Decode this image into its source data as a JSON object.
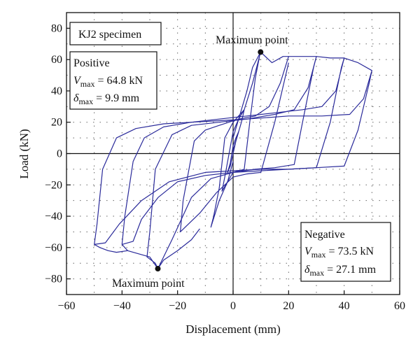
{
  "chart_data": {
    "type": "line",
    "xlabel": "Displacement (mm)",
    "ylabel": "Load (kN)",
    "xlim": [
      -60,
      60
    ],
    "ylim": [
      -90,
      90
    ],
    "x_ticks": [
      -60,
      -40,
      -20,
      0,
      20,
      40,
      60
    ],
    "y_ticks": [
      -80,
      -60,
      -40,
      -20,
      0,
      20,
      40,
      60,
      80
    ],
    "x_tick_labels": [
      "−60",
      "−40",
      "−20",
      "0",
      "20",
      "40",
      "60"
    ],
    "y_tick_labels": [
      "−80",
      "−60",
      "−40",
      "−20",
      "0",
      "20",
      "40",
      "60",
      "80"
    ],
    "grid": "dotted",
    "line_color": "#2a2a9a",
    "specimen_label": "KJ2 specimen",
    "positive_box": {
      "title": "Positive",
      "v_symbol": "V",
      "v_sub": "max",
      "v_value": " = 64.8 kN",
      "d_symbol": "δ",
      "d_sub": "max",
      "d_value": " = 9.9 mm"
    },
    "negative_box": {
      "title": "Negative",
      "v_symbol": "V",
      "v_sub": "max",
      "v_value": " = 73.5 kN",
      "d_symbol": "δ",
      "d_sub": "max",
      "d_value": " = 27.1 mm"
    },
    "annotations": [
      {
        "text": "Maximum point",
        "x": 9.9,
        "y": 64.8
      },
      {
        "text": "Maximum point",
        "x": -27.1,
        "y": -73.5
      }
    ],
    "peak_points": [
      {
        "x": 9.9,
        "y": 64.8
      },
      {
        "x": -27.1,
        "y": -73.5
      }
    ],
    "series": [
      {
        "values": [
          [
            0,
            0
          ],
          [
            1,
            8
          ],
          [
            2,
            14
          ],
          [
            1,
            10
          ],
          [
            0,
            5
          ],
          [
            -1,
            -6
          ],
          [
            -2,
            -12
          ],
          [
            -1,
            -8
          ],
          [
            0,
            0
          ]
        ]
      },
      {
        "values": [
          [
            0,
            2
          ],
          [
            3,
            20
          ],
          [
            4,
            28
          ],
          [
            2,
            22
          ],
          [
            0,
            14
          ],
          [
            -3,
            -15
          ],
          [
            -4,
            -24
          ],
          [
            -2,
            -18
          ],
          [
            0,
            -5
          ]
        ]
      },
      {
        "values": [
          [
            0,
            10
          ],
          [
            5,
            40
          ],
          [
            7,
            55
          ],
          [
            9.9,
            64.8
          ],
          [
            7,
            45
          ],
          [
            4,
            28
          ],
          [
            0,
            20
          ],
          [
            -3,
            10
          ],
          [
            -5,
            -22
          ],
          [
            -7,
            -40
          ],
          [
            -8,
            -47
          ],
          [
            -5,
            -30
          ],
          [
            -2,
            -18
          ],
          [
            0,
            -12
          ],
          [
            4,
            -10
          ],
          [
            6,
            20
          ],
          [
            8,
            48
          ],
          [
            9.5,
            62
          ]
        ]
      },
      {
        "values": [
          [
            9.9,
            64.8
          ],
          [
            14,
            58
          ],
          [
            18,
            62
          ],
          [
            20,
            62
          ],
          [
            17,
            45
          ],
          [
            13,
            30
          ],
          [
            8,
            24
          ],
          [
            2,
            22
          ],
          [
            -5,
            18
          ],
          [
            -10,
            15
          ],
          [
            -14,
            8
          ],
          [
            -18,
            -30
          ],
          [
            -19,
            -50
          ],
          [
            -12,
            -38
          ],
          [
            -6,
            -25
          ],
          [
            0,
            -15
          ],
          [
            5,
            -13
          ],
          [
            10,
            -12
          ],
          [
            15,
            20
          ],
          [
            20,
            58
          ]
        ]
      },
      {
        "values": [
          [
            20,
            62
          ],
          [
            25,
            62
          ],
          [
            30,
            62
          ],
          [
            27,
            42
          ],
          [
            22,
            28
          ],
          [
            15,
            25
          ],
          [
            5,
            22
          ],
          [
            -5,
            20
          ],
          [
            -15,
            18
          ],
          [
            -22,
            12
          ],
          [
            -28,
            -10
          ],
          [
            -30,
            -50
          ],
          [
            -31,
            -66
          ],
          [
            -28,
            -70
          ],
          [
            -27.1,
            -73.5
          ],
          [
            -22,
            -55
          ],
          [
            -15,
            -28
          ],
          [
            -8,
            -16
          ],
          [
            0,
            -12
          ],
          [
            8,
            -10
          ],
          [
            15,
            -9
          ],
          [
            22,
            -7
          ],
          [
            25,
            20
          ],
          [
            29,
            55
          ],
          [
            30,
            62
          ]
        ]
      },
      {
        "values": [
          [
            30,
            62
          ],
          [
            35,
            61
          ],
          [
            40,
            61
          ],
          [
            37,
            40
          ],
          [
            32,
            30
          ],
          [
            25,
            28
          ],
          [
            15,
            26
          ],
          [
            5,
            24
          ],
          [
            -5,
            22
          ],
          [
            -15,
            20
          ],
          [
            -25,
            17
          ],
          [
            -32,
            10
          ],
          [
            -36,
            -5
          ],
          [
            -39,
            -40
          ],
          [
            -40,
            -58
          ],
          [
            -36,
            -56
          ],
          [
            -33,
            -42
          ],
          [
            -27,
            -28
          ],
          [
            -20,
            -18
          ],
          [
            -10,
            -14
          ],
          [
            0,
            -12
          ],
          [
            10,
            -11
          ],
          [
            20,
            -10
          ],
          [
            30,
            -9
          ],
          [
            35,
            20
          ],
          [
            39,
            55
          ],
          [
            40,
            61
          ]
        ]
      },
      {
        "values": [
          [
            40,
            61
          ],
          [
            45,
            58
          ],
          [
            50,
            53
          ],
          [
            47,
            35
          ],
          [
            42,
            25
          ],
          [
            32,
            24
          ],
          [
            20,
            24
          ],
          [
            5,
            22
          ],
          [
            -5,
            21
          ],
          [
            -15,
            20
          ],
          [
            -25,
            19
          ],
          [
            -35,
            16
          ],
          [
            -42,
            10
          ],
          [
            -47,
            -10
          ],
          [
            -49,
            -45
          ],
          [
            -50,
            -58
          ],
          [
            -46,
            -57
          ],
          [
            -41,
            -45
          ],
          [
            -33,
            -30
          ],
          [
            -23,
            -18
          ],
          [
            -10,
            -12
          ],
          [
            0,
            -11
          ],
          [
            10,
            -10
          ],
          [
            20,
            -10
          ],
          [
            30,
            -9
          ],
          [
            40,
            -8
          ],
          [
            45,
            15
          ],
          [
            49,
            45
          ],
          [
            50,
            53
          ]
        ]
      },
      {
        "values": [
          [
            -40,
            -58
          ],
          [
            -38,
            -62
          ],
          [
            -34,
            -64
          ],
          [
            -30,
            -66
          ],
          [
            -27.1,
            -73.5
          ],
          [
            -25,
            -68
          ],
          [
            -20,
            -62
          ],
          [
            -15,
            -55
          ],
          [
            -12,
            -48
          ]
        ]
      },
      {
        "values": [
          [
            -50,
            -58
          ],
          [
            -48,
            -60
          ],
          [
            -45,
            -62
          ],
          [
            -42,
            -63
          ],
          [
            -38,
            -62
          ]
        ]
      }
    ]
  }
}
